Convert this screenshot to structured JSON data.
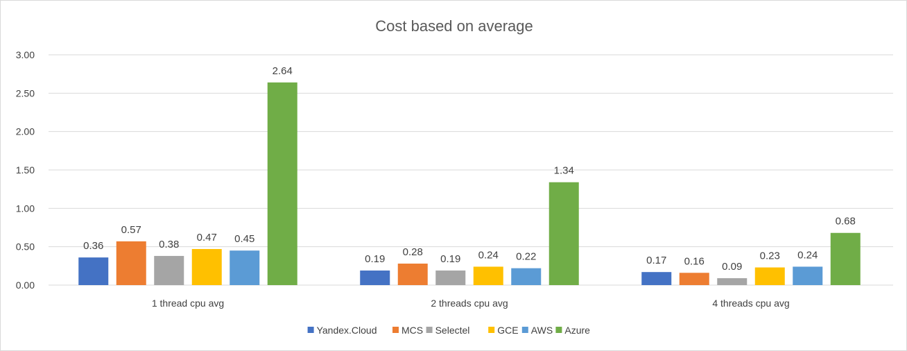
{
  "chart_data": {
    "type": "bar",
    "title": "Cost based on average",
    "xlabel": "",
    "ylabel": "",
    "ylim": [
      0,
      3
    ],
    "yticks": [
      "0.00",
      "0.50",
      "1.00",
      "1.50",
      "2.00",
      "2.50",
      "3.00"
    ],
    "grid": true,
    "legend_position": "bottom",
    "categories": [
      "1 thread cpu avg",
      "2 threads cpu avg",
      "4 threads cpu avg"
    ],
    "series": [
      {
        "name": "Yandex.Cloud",
        "color": "#4472C4",
        "values": [
          0.36,
          0.19,
          0.17
        ]
      },
      {
        "name": "MCS",
        "color": "#ED7D31",
        "values": [
          0.57,
          0.28,
          0.16
        ]
      },
      {
        "name": "Selectel",
        "color": "#A5A5A5",
        "values": [
          0.38,
          0.19,
          0.09
        ]
      },
      {
        "name": "GCE",
        "color": "#FFC000",
        "values": [
          0.47,
          0.24,
          0.23
        ]
      },
      {
        "name": "AWS",
        "color": "#5B9BD5",
        "values": [
          0.45,
          0.22,
          0.24
        ]
      },
      {
        "name": "Azure",
        "color": "#70AD47",
        "values": [
          2.64,
          1.34,
          0.68
        ]
      }
    ]
  }
}
